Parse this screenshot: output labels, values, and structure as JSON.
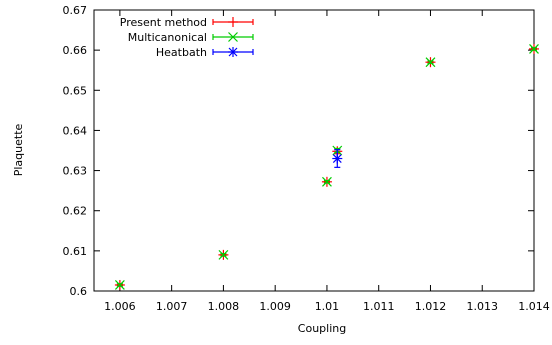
{
  "chart_data": {
    "type": "scatter",
    "xlabel": "Coupling",
    "ylabel": "Plaquette",
    "xlim": [
      1.0055,
      1.014
    ],
    "ylim": [
      0.6,
      0.67
    ],
    "x_ticks": [
      1.006,
      1.007,
      1.008,
      1.009,
      1.01,
      1.011,
      1.012,
      1.013,
      1.014
    ],
    "x_tick_labels": [
      "1.006",
      "1.007",
      "1.008",
      "1.009",
      "1.01",
      "1.011",
      "1.012",
      "1.013",
      "1.014"
    ],
    "y_ticks": [
      0.6,
      0.61,
      0.62,
      0.63,
      0.64,
      0.65,
      0.66,
      0.67
    ],
    "y_tick_labels": [
      "0.6",
      "0.61",
      "0.62",
      "0.63",
      "0.64",
      "0.65",
      "0.66",
      "0.67"
    ],
    "grid": false,
    "legend_position": "top-left",
    "series": [
      {
        "name": "Present method",
        "color": "#ff0000",
        "marker": "plus",
        "points": [
          {
            "x": 1.006,
            "y": 0.6015,
            "err": 0.0002
          },
          {
            "x": 1.008,
            "y": 0.609,
            "err": 0.0002
          },
          {
            "x": 1.01,
            "y": 0.6272,
            "err": 0.0002
          },
          {
            "x": 1.0102,
            "y": 0.6348,
            "err": 0.0006
          },
          {
            "x": 1.012,
            "y": 0.657,
            "err": 0.0002
          },
          {
            "x": 1.014,
            "y": 0.6603,
            "err": 0.0002
          }
        ]
      },
      {
        "name": "Multicanonical",
        "color": "#00cc00",
        "marker": "x",
        "points": [
          {
            "x": 1.006,
            "y": 0.6015,
            "err": 0.0003
          },
          {
            "x": 1.008,
            "y": 0.609,
            "err": 0.0003
          },
          {
            "x": 1.01,
            "y": 0.6272,
            "err": 0.0003
          },
          {
            "x": 1.0102,
            "y": 0.635,
            "err": 0.0005
          },
          {
            "x": 1.012,
            "y": 0.657,
            "err": 0.0003
          },
          {
            "x": 1.014,
            "y": 0.6603,
            "err": 0.0003
          }
        ]
      },
      {
        "name": "Heatbath",
        "color": "#0000ff",
        "marker": "star",
        "points": [
          {
            "x": 1.0102,
            "y": 0.633,
            "err": 0.0022
          }
        ]
      }
    ]
  }
}
